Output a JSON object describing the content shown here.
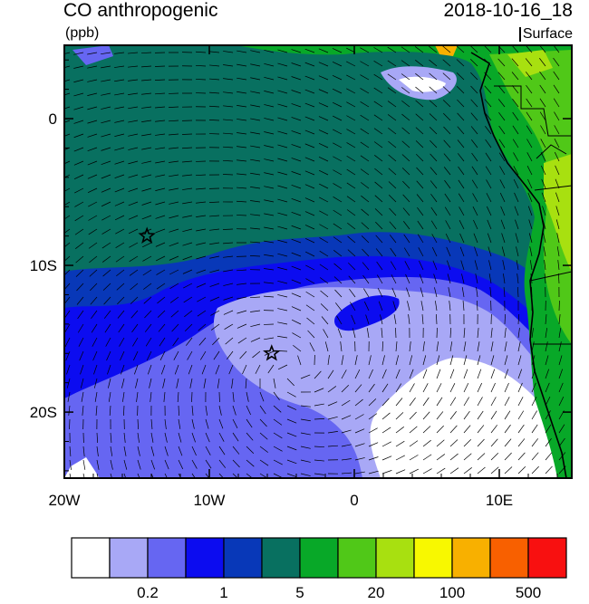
{
  "header": {
    "title": "CO anthropogenic",
    "units": "(ppb)",
    "datetime": "2018-10-16_18",
    "level": "Surface"
  },
  "axes": {
    "x_ticks": [
      "20W",
      "10W",
      "0",
      "10E"
    ],
    "x_values": [
      -20,
      -10,
      0,
      10
    ],
    "y_ticks": [
      "0",
      "10S",
      "20S"
    ],
    "y_values": [
      0,
      -10,
      -20
    ],
    "lon_range": [
      -20,
      15
    ],
    "lat_range": [
      -24.5,
      5
    ]
  },
  "colorbar": {
    "colors": [
      "#ffffff",
      "#a8a8f6",
      "#6666f2",
      "#0c0cf0",
      "#0838b8",
      "#087060",
      "#08a828",
      "#50c818",
      "#a8e010",
      "#f8f800",
      "#f8b000",
      "#f86000",
      "#f81010"
    ],
    "labels": [
      "0.2",
      "1",
      "5",
      "20",
      "100",
      "500"
    ]
  },
  "map": {
    "markers": [
      {
        "lon": -14.3,
        "lat": -8.0,
        "symbol": "star"
      },
      {
        "lon": -5.7,
        "lat": -16.0,
        "symbol": "star"
      }
    ],
    "layer": "wind-vectors"
  }
}
